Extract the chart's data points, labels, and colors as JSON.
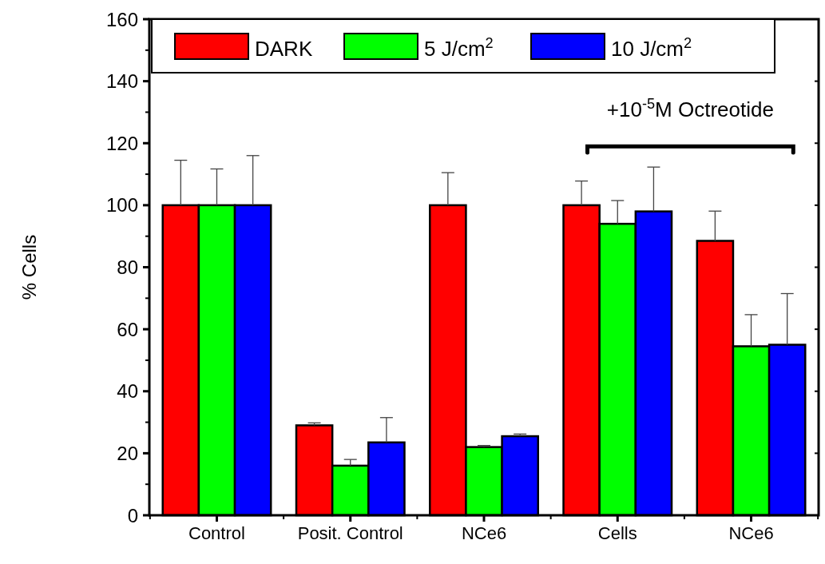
{
  "chart_data": {
    "type": "bar",
    "ylabel": "% Cells",
    "categories": [
      "Control",
      "Posit. Control",
      "NCe6",
      "Cells",
      "NCe6"
    ],
    "series": [
      {
        "name": "DARK",
        "color": "#ff0000",
        "values": [
          100,
          29,
          100,
          100,
          88.5
        ],
        "errors": [
          [
            100,
            114.5
          ],
          [
            29,
            29.8
          ],
          [
            100,
            110.5
          ],
          [
            100,
            107.8
          ],
          [
            88.5,
            98.1
          ]
        ]
      },
      {
        "name": "5 J/cm$^{2}$",
        "color": "#00ff00",
        "values": [
          100,
          16,
          22,
          94,
          54.5
        ],
        "errors": [
          [
            100,
            111.7
          ],
          [
            16,
            18
          ],
          [
            22,
            22.5
          ],
          [
            94,
            101.5
          ],
          [
            54.5,
            64.7
          ]
        ]
      },
      {
        "name": "10 J/cm$^{2}$",
        "color": "#0000ff",
        "values": [
          100,
          23.5,
          25.5,
          98,
          55
        ],
        "errors": [
          [
            100,
            116
          ],
          [
            23.5,
            31.5
          ],
          [
            25.5,
            26.2
          ],
          [
            98,
            112.3
          ],
          [
            55,
            71.5
          ]
        ]
      }
    ],
    "ylim": [
      0,
      160
    ],
    "yticks": [
      0,
      20,
      40,
      60,
      80,
      100,
      120,
      140,
      160
    ],
    "grid": false,
    "legend": "top",
    "annotations": [
      "+10$^{-5}$M Octreotide"
    ]
  }
}
